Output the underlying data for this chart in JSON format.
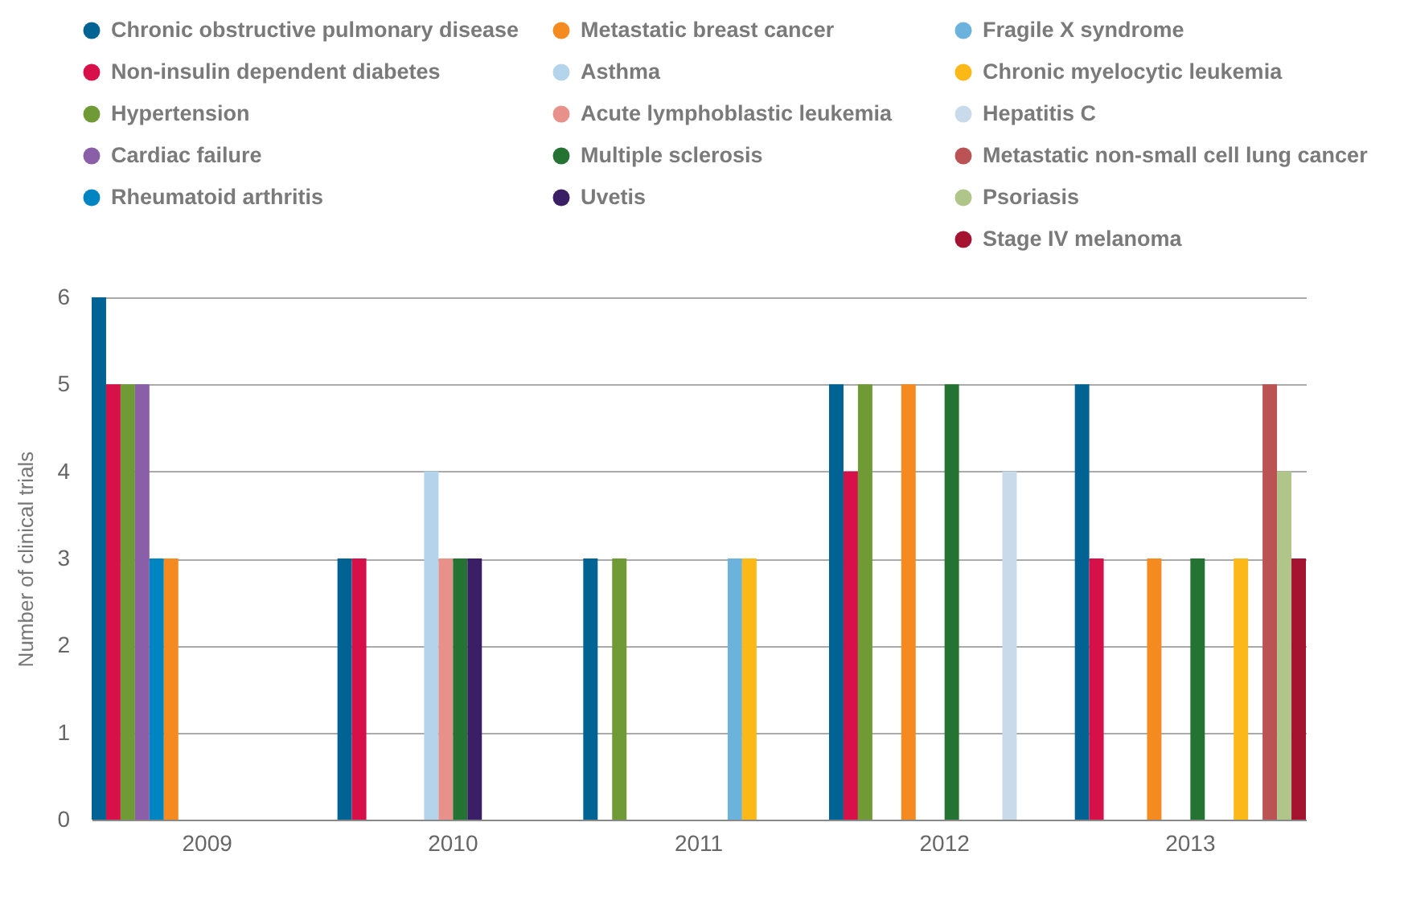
{
  "chart_data": {
    "type": "bar",
    "ylabel": "Number of clinical trials",
    "categories": [
      "2009",
      "2010",
      "2011",
      "2012",
      "2013"
    ],
    "series": [
      {
        "name": "Chronic obstructive pulmonary disease",
        "color": "#006394",
        "values": [
          6,
          3,
          3,
          5,
          5
        ]
      },
      {
        "name": "Non-insulin dependent diabetes",
        "color": "#d7104a",
        "values": [
          5,
          3,
          null,
          4,
          3
        ]
      },
      {
        "name": "Hypertension",
        "color": "#709a35",
        "values": [
          5,
          null,
          3,
          5,
          null
        ]
      },
      {
        "name": "Cardiac failure",
        "color": "#8a5fa8",
        "values": [
          5,
          null,
          null,
          null,
          null
        ]
      },
      {
        "name": "Rheumatoid arthritis",
        "color": "#0085c2",
        "values": [
          3,
          null,
          null,
          null,
          null
        ]
      },
      {
        "name": "Metastatic breast cancer",
        "color": "#f58a21",
        "values": [
          3,
          null,
          null,
          5,
          3
        ]
      },
      {
        "name": "Asthma",
        "color": "#b3d4ea",
        "values": [
          null,
          4,
          null,
          null,
          null
        ]
      },
      {
        "name": "Acute lymphoblastic leukemia",
        "color": "#e8918a",
        "values": [
          null,
          3,
          null,
          null,
          null
        ]
      },
      {
        "name": "Multiple sclerosis",
        "color": "#247333",
        "values": [
          null,
          3,
          null,
          5,
          3
        ]
      },
      {
        "name": "Uvetis",
        "color": "#3b1f66",
        "values": [
          null,
          3,
          null,
          null,
          null
        ]
      },
      {
        "name": "Fragile X syndrome",
        "color": "#6bb3dc",
        "values": [
          null,
          null,
          3,
          null,
          null
        ]
      },
      {
        "name": "Chronic myelocytic leukemia",
        "color": "#fbb817",
        "values": [
          null,
          null,
          3,
          null,
          3
        ]
      },
      {
        "name": "Hepatitis C",
        "color": "#c9dbeb",
        "values": [
          null,
          null,
          null,
          4,
          null
        ]
      },
      {
        "name": "Metastatic non-small cell lung cancer",
        "color": "#bb5355",
        "values": [
          null,
          null,
          null,
          null,
          5
        ]
      },
      {
        "name": "Psoriasis",
        "color": "#b0c58a",
        "values": [
          null,
          null,
          null,
          null,
          4
        ]
      },
      {
        "name": "Stage IV melanoma",
        "color": "#a41431",
        "values": [
          null,
          null,
          null,
          null,
          3
        ]
      }
    ],
    "ylim": [
      0,
      6
    ],
    "yticks": [
      0,
      1,
      2,
      3,
      4,
      5,
      6
    ],
    "grid": "y",
    "legend": "top"
  }
}
